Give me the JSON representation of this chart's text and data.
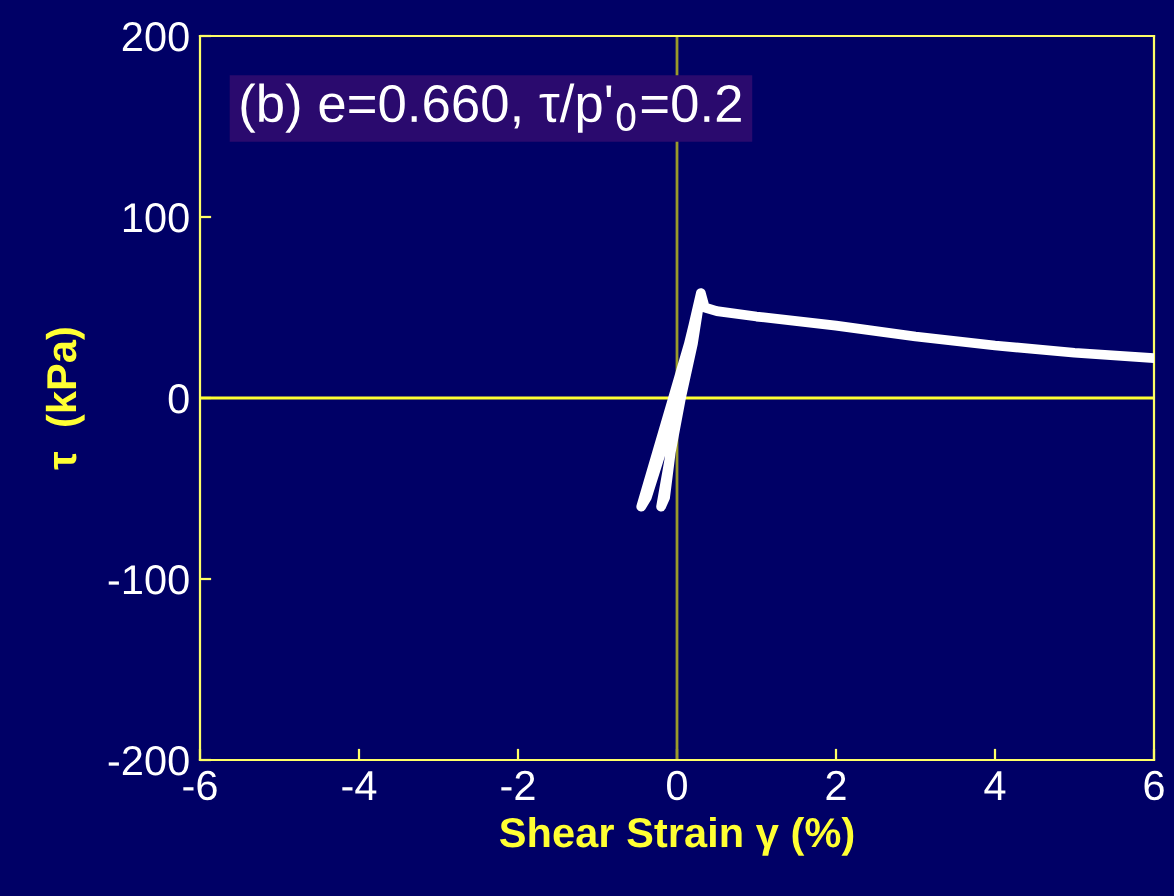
{
  "chart_data": {
    "type": "line",
    "xlabel": "Shear Strain γ (%)",
    "ylabel": "τ  (kPa)",
    "annotations": [
      "(b) e=0.660, τ/p'$_{0}$=0.2"
    ],
    "series": [
      {
        "color": "#ffffff",
        "x": [
          0.0,
          0.15,
          0.3,
          0.15,
          -0.05,
          -0.25,
          -0.45,
          -0.38,
          -0.2,
          0.0,
          0.15,
          0.3,
          0.2,
          0.05,
          -0.1,
          -0.2,
          -0.15,
          -0.05,
          0.1,
          0.3,
          0.35,
          0.5,
          1.0,
          2.0,
          3.0,
          4.0,
          5.0,
          6.0
        ],
        "values": [
          0,
          25,
          57,
          30,
          0,
          -30,
          -60,
          -55,
          -30,
          0,
          25,
          58,
          30,
          0,
          -35,
          -60,
          -55,
          -20,
          20,
          58,
          50,
          48,
          45,
          40,
          34,
          29,
          25,
          22
        ]
      }
    ],
    "xlim": [
      -6,
      6
    ],
    "ylim": [
      -200,
      200
    ],
    "xticks": [
      -6,
      -4,
      -2,
      0,
      2,
      4,
      6
    ],
    "yticks": [
      -200,
      -100,
      0,
      100,
      200
    ],
    "ref_lines": [
      {
        "axis": "x",
        "value": 0,
        "color": "#9a9a2a"
      },
      {
        "axis": "y",
        "value": 0,
        "color": "#ffff33"
      }
    ],
    "grid": false,
    "legend": false
  }
}
